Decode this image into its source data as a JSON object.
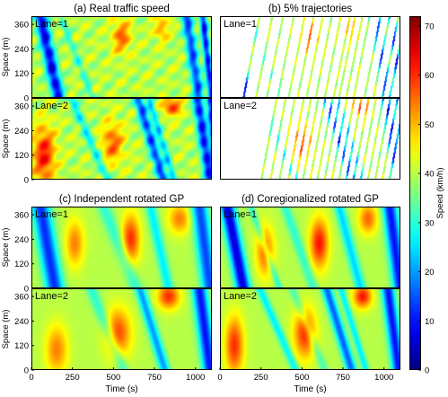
{
  "figure": {
    "colorbar": {
      "label": "Speed (km/h)",
      "ticks": [
        0,
        10,
        20,
        30,
        40,
        50,
        60,
        70
      ],
      "range": [
        0,
        72
      ],
      "colormap": "jet"
    }
  },
  "chart_data": [
    {
      "type": "heatmap",
      "title": "(a) Real traffic speed",
      "ylabel": "Space (m)",
      "xlabel": "",
      "xlim": [
        0,
        1100
      ],
      "ylim": [
        0,
        400
      ],
      "yticks": [
        0,
        120,
        240,
        360
      ],
      "xticks": [],
      "panels": [
        {
          "label": "Lane=1"
        },
        {
          "label": "Lane=2"
        }
      ],
      "values_description": "speed field (km/h) with congestion waves around t=50-150s, t=600-800s, t=950-1100s",
      "z_unit": "km/h"
    },
    {
      "type": "heatmap",
      "title": "(b) 5% trajectories",
      "ylabel": "",
      "xlabel": "",
      "xlim": [
        0,
        1100
      ],
      "ylim": [
        0,
        400
      ],
      "yticks": [],
      "xticks": [],
      "panels": [
        {
          "label": "Lane=1"
        },
        {
          "label": "Lane=2"
        }
      ],
      "z_unit": "km/h"
    },
    {
      "type": "heatmap",
      "title": "(c) Independent rotated GP",
      "ylabel": "Space (m)",
      "xlabel": "Time (s)",
      "xlim": [
        0,
        1100
      ],
      "ylim": [
        0,
        400
      ],
      "yticks": [
        0,
        120,
        240,
        360
      ],
      "xticks": [
        0,
        250,
        500,
        750,
        1000
      ],
      "panels": [
        {
          "label": "Lane=1"
        },
        {
          "label": "Lane=2"
        }
      ],
      "z_unit": "km/h"
    },
    {
      "type": "heatmap",
      "title": "(d) Coregionalized rotated GP",
      "ylabel": "",
      "xlabel": "Time (s)",
      "xlim": [
        0,
        1100
      ],
      "ylim": [
        0,
        400
      ],
      "yticks": [],
      "xticks": [
        0,
        250,
        500,
        750,
        1000
      ],
      "panels": [
        {
          "label": "Lane=1"
        },
        {
          "label": "Lane=2"
        }
      ],
      "z_unit": "km/h"
    }
  ]
}
